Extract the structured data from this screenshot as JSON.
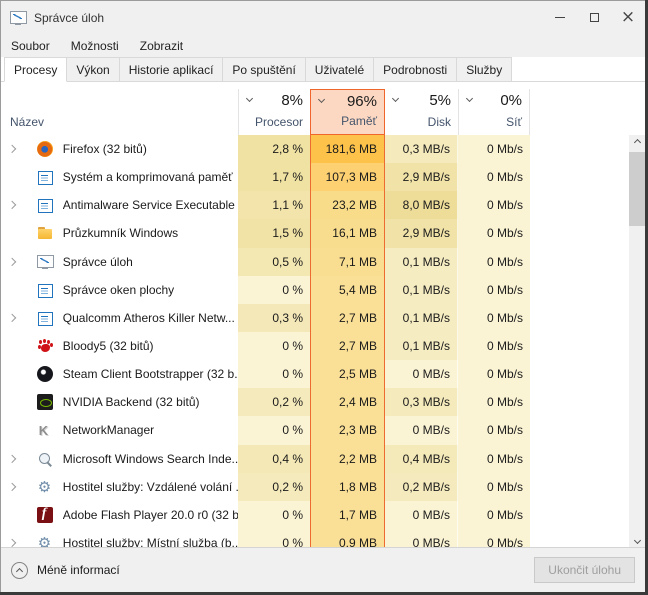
{
  "window": {
    "title": "Správce úloh"
  },
  "menu": {
    "items": [
      {
        "key": "soubor",
        "label": "Soubor"
      },
      {
        "key": "moznosti",
        "label": "Možnosti"
      },
      {
        "key": "zobrazit",
        "label": "Zobrazit"
      }
    ]
  },
  "tabs": [
    {
      "key": "procesy",
      "label": "Procesy",
      "active": true
    },
    {
      "key": "vykon",
      "label": "Výkon"
    },
    {
      "key": "historie-aplikaci",
      "label": "Historie aplikací"
    },
    {
      "key": "po-spusteni",
      "label": "Po spuštění"
    },
    {
      "key": "uzivatele",
      "label": "Uživatelé"
    },
    {
      "key": "podrobnosti",
      "label": "Podrobnosti"
    },
    {
      "key": "sluzby",
      "label": "Služby"
    }
  ],
  "table": {
    "name_header": "Název",
    "columns": [
      {
        "key": "cpu",
        "pct": "8%",
        "label": "Procesor"
      },
      {
        "key": "mem",
        "pct": "96%",
        "label": "Paměť",
        "selected": true
      },
      {
        "key": "disk",
        "pct": "5%",
        "label": "Disk"
      },
      {
        "key": "net",
        "pct": "0%",
        "label": "Síť"
      }
    ],
    "rows": [
      {
        "name": "Firefox (32 bitů)",
        "icon": "firefox",
        "expandable": true,
        "cells": [
          {
            "v": "2,8 %",
            "bg": "#f0e2a3"
          },
          {
            "v": "181,6 MB",
            "bg": "#fcc24a"
          },
          {
            "v": "0,3 MB/s",
            "bg": "#f5eabc"
          },
          {
            "v": "0 Mb/s",
            "bg": "#fbf4d4"
          }
        ]
      },
      {
        "name": "Systém a komprimovaná paměť",
        "icon": "window",
        "expandable": false,
        "cells": [
          {
            "v": "1,7 %",
            "bg": "#f0e2a3"
          },
          {
            "v": "107,3 MB",
            "bg": "#fdd172"
          },
          {
            "v": "2,9 MB/s",
            "bg": "#f1e3a8"
          },
          {
            "v": "0 Mb/s",
            "bg": "#fbf4d4"
          }
        ]
      },
      {
        "name": "Antimalware Service Executable",
        "icon": "window",
        "expandable": true,
        "cells": [
          {
            "v": "1,1 %",
            "bg": "#f2e4ab"
          },
          {
            "v": "23,2 MB",
            "bg": "#f9dc8a"
          },
          {
            "v": "8,0 MB/s",
            "bg": "#eedc99"
          },
          {
            "v": "0 Mb/s",
            "bg": "#fbf4d4"
          }
        ]
      },
      {
        "name": "Průzkumník Windows",
        "icon": "folder",
        "expandable": false,
        "cells": [
          {
            "v": "1,5 %",
            "bg": "#f1e2a5"
          },
          {
            "v": "16,1 MB",
            "bg": "#f9dd8e"
          },
          {
            "v": "2,9 MB/s",
            "bg": "#f1e3a8"
          },
          {
            "v": "0 Mb/s",
            "bg": "#fbf4d4"
          }
        ]
      },
      {
        "name": "Správce úloh",
        "icon": "monitor",
        "expandable": true,
        "cells": [
          {
            "v": "0,5 %",
            "bg": "#f3e7b2"
          },
          {
            "v": "7,1 MB",
            "bg": "#f9de92"
          },
          {
            "v": "0,1 MB/s",
            "bg": "#f6ecc2"
          },
          {
            "v": "0 Mb/s",
            "bg": "#fbf4d4"
          }
        ]
      },
      {
        "name": "Správce oken plochy",
        "icon": "window",
        "expandable": false,
        "cells": [
          {
            "v": "0 %",
            "bg": "#fbf4d4"
          },
          {
            "v": "5,4 MB",
            "bg": "#fadf96"
          },
          {
            "v": "0,1 MB/s",
            "bg": "#f6ecc2"
          },
          {
            "v": "0 Mb/s",
            "bg": "#fbf4d4"
          }
        ]
      },
      {
        "name": "Qualcomm Atheros Killer Netw...",
        "icon": "window",
        "expandable": true,
        "cells": [
          {
            "v": "0,3 %",
            "bg": "#f4e8b8"
          },
          {
            "v": "2,7 MB",
            "bg": "#fadf96"
          },
          {
            "v": "0,1 MB/s",
            "bg": "#f6ecc2"
          },
          {
            "v": "0 Mb/s",
            "bg": "#fbf4d4"
          }
        ]
      },
      {
        "name": "Bloody5 (32 bitů)",
        "icon": "bloody",
        "expandable": false,
        "cells": [
          {
            "v": "0 %",
            "bg": "#fbf4d4"
          },
          {
            "v": "2,7 MB",
            "bg": "#fadf96"
          },
          {
            "v": "0,1 MB/s",
            "bg": "#f6ecc2"
          },
          {
            "v": "0 Mb/s",
            "bg": "#fbf4d4"
          }
        ]
      },
      {
        "name": "Steam Client Bootstrapper (32 b...",
        "icon": "steam",
        "expandable": false,
        "cells": [
          {
            "v": "0 %",
            "bg": "#fbf4d4"
          },
          {
            "v": "2,5 MB",
            "bg": "#fadf96"
          },
          {
            "v": "0 MB/s",
            "bg": "#fbf4d4"
          },
          {
            "v": "0 Mb/s",
            "bg": "#fbf4d4"
          }
        ]
      },
      {
        "name": "NVIDIA Backend (32 bitů)",
        "icon": "nvidia",
        "expandable": false,
        "cells": [
          {
            "v": "0,2 %",
            "bg": "#f5eabc"
          },
          {
            "v": "2,4 MB",
            "bg": "#fadf96"
          },
          {
            "v": "0,3 MB/s",
            "bg": "#f5eabc"
          },
          {
            "v": "0 Mb/s",
            "bg": "#fbf4d4"
          }
        ]
      },
      {
        "name": "NetworkManager",
        "icon": "k",
        "expandable": false,
        "cells": [
          {
            "v": "0 %",
            "bg": "#fbf4d4"
          },
          {
            "v": "2,3 MB",
            "bg": "#fadf96"
          },
          {
            "v": "0 MB/s",
            "bg": "#fbf4d4"
          },
          {
            "v": "0 Mb/s",
            "bg": "#fbf4d4"
          }
        ]
      },
      {
        "name": "Microsoft Windows Search Inde...",
        "icon": "search",
        "expandable": true,
        "cells": [
          {
            "v": "0,4 %",
            "bg": "#f4e8b6"
          },
          {
            "v": "2,2 MB",
            "bg": "#fadf96"
          },
          {
            "v": "0,4 MB/s",
            "bg": "#f4e9b8"
          },
          {
            "v": "0 Mb/s",
            "bg": "#fbf4d4"
          }
        ]
      },
      {
        "name": "Hostitel služby: Vzdálené volání ...",
        "icon": "gear",
        "expandable": true,
        "cells": [
          {
            "v": "0,2 %",
            "bg": "#f5eabc"
          },
          {
            "v": "1,8 MB",
            "bg": "#fadf96"
          },
          {
            "v": "0,2 MB/s",
            "bg": "#f5eabd"
          },
          {
            "v": "0 Mb/s",
            "bg": "#fbf4d4"
          }
        ]
      },
      {
        "name": "Adobe Flash Player 20.0 r0 (32 b...",
        "icon": "flash",
        "expandable": false,
        "cells": [
          {
            "v": "0 %",
            "bg": "#fbf4d4"
          },
          {
            "v": "1,7 MB",
            "bg": "#fadf96"
          },
          {
            "v": "0 MB/s",
            "bg": "#fbf4d4"
          },
          {
            "v": "0 Mb/s",
            "bg": "#fbf4d4"
          }
        ]
      },
      {
        "name": "Hostitel služby: Místní služba (b...",
        "icon": "gear",
        "expandable": true,
        "cells": [
          {
            "v": "0 %",
            "bg": "#fbf4d4"
          },
          {
            "v": "0,9 MB",
            "bg": "#fadf96"
          },
          {
            "v": "0 MB/s",
            "bg": "#fbf4d4"
          },
          {
            "v": "0 Mb/s",
            "bg": "#fbf4d4"
          }
        ]
      }
    ]
  },
  "footer": {
    "less_info": "Méně informací",
    "end_task": "Ukončit úlohu"
  },
  "colors": {
    "selected_column_border": "#ef652b",
    "selected_column_bg": "#fcd8c2",
    "window_chrome": "#f0f0f0",
    "heat_low": "#fbf4d4",
    "heat_high": "#fcc24a"
  }
}
